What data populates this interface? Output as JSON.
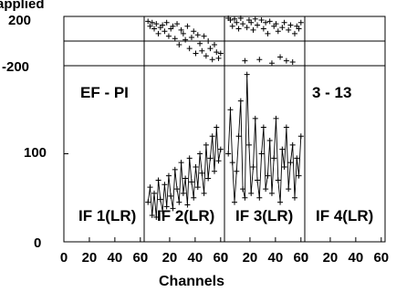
{
  "chart_data": {
    "type": "line",
    "title_top": "applied",
    "xlabel": "Channels",
    "panel_left_label": "EF - PI",
    "panel_right_label": "3 - 13",
    "phase_panel": {
      "ylim": [
        -200,
        200
      ],
      "ytick_labels": [
        "200",
        "-200"
      ]
    },
    "amp_panel": {
      "ylim": [
        0,
        200
      ],
      "ytick_labels": [
        "0",
        "100"
      ]
    },
    "xlim": [
      0,
      63
    ],
    "xtick_labels": [
      "0",
      "20",
      "40",
      "60"
    ],
    "subplots": [
      {
        "name": "IF 1(LR)",
        "amp": [],
        "phase": []
      },
      {
        "name": "IF 2(LR)",
        "amp": [
          45,
          62,
          30,
          55,
          28,
          70,
          48,
          35,
          65,
          40,
          75,
          52,
          38,
          82,
          60,
          45,
          90,
          55,
          72,
          42,
          95,
          68,
          50,
          85,
          62,
          100,
          78,
          55,
          110,
          72,
          95,
          120,
          80,
          130,
          92,
          105
        ],
        "phase": [
          160,
          120,
          150,
          100,
          140,
          60,
          110,
          130,
          80,
          150,
          40,
          100,
          120,
          20,
          140,
          -30,
          90,
          60,
          10,
          120,
          -60,
          30,
          80,
          -100,
          50,
          -20,
          -80,
          40,
          -120,
          0,
          -60,
          -150,
          -30,
          -90,
          -140,
          -100
        ]
      },
      {
        "name": "IF 3(LR)",
        "amp": [
          100,
          150,
          90,
          45,
          80,
          120,
          160,
          60,
          50,
          190,
          110,
          55,
          85,
          140,
          70,
          50,
          100,
          130,
          60,
          75,
          115,
          55,
          95,
          140,
          70,
          45,
          105,
          85,
          130,
          60,
          90,
          110,
          50,
          95,
          75,
          120
        ],
        "phase": [
          200,
          170,
          120,
          180,
          150,
          100,
          190,
          140,
          -160,
          110,
          170,
          150,
          90,
          180,
          130,
          -150,
          170,
          100,
          150,
          60,
          160,
          -180,
          120,
          140,
          80,
          -130,
          110,
          150,
          -160,
          90,
          130,
          -170,
          60,
          120,
          100,
          150
        ]
      },
      {
        "name": "IF 4(LR)",
        "amp": [],
        "phase": []
      }
    ]
  }
}
